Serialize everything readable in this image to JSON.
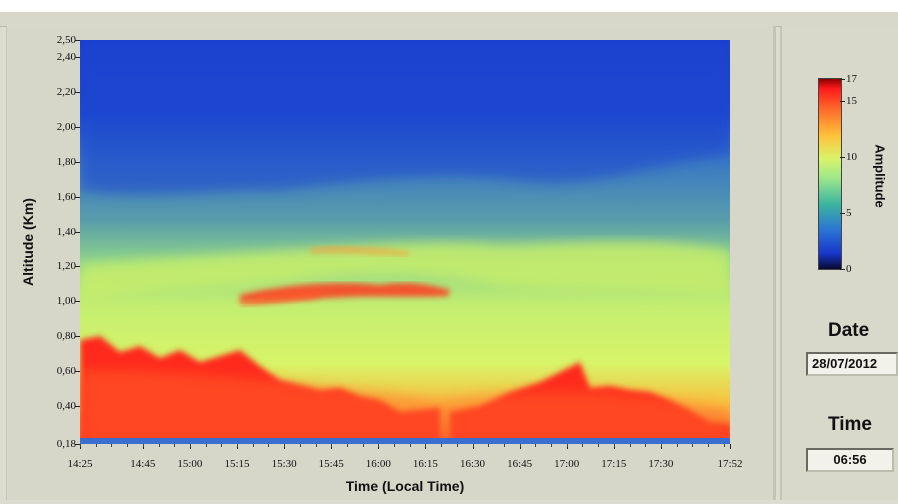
{
  "chart_data": {
    "type": "heatmap",
    "title": "",
    "xlabel": "Time (Local Time)",
    "ylabel": "Altitude (Km)",
    "x_ticks": [
      "14:25",
      "14:45",
      "15:00",
      "15:15",
      "15:30",
      "15:45",
      "16:00",
      "16:15",
      "16:30",
      "16:45",
      "17:00",
      "17:15",
      "17:30",
      "17:52"
    ],
    "y_ticks": [
      "0,18",
      "0,40",
      "0,60",
      "0,80",
      "1,00",
      "1,20",
      "1,40",
      "1,60",
      "1,80",
      "2,00",
      "2,20",
      "2,40",
      "2,50"
    ],
    "xlim": [
      "14:25",
      "17:52"
    ],
    "ylim": [
      0.18,
      2.5
    ],
    "colorbar": {
      "label": "Amplitude",
      "ticks": [
        "17",
        "15",
        "10",
        "5",
        "0"
      ],
      "range": [
        0,
        17
      ]
    },
    "features": {
      "strong_layer_1_1km": {
        "time_start": "15:00",
        "time_end": "16:15",
        "altitude": 1.1,
        "amplitude": 15
      },
      "surface_layer": {
        "altitude_top": 0.6,
        "amplitude": 16
      }
    }
  },
  "side_panel": {
    "date_label": "Date",
    "date_value": "28/07/2012",
    "time_label": "Time",
    "time_value": "06:56"
  },
  "colors": {
    "low": "#1736c9",
    "mid": "#c8f06e",
    "high": "#ff1a1a",
    "panel": "#d6d6c9"
  }
}
